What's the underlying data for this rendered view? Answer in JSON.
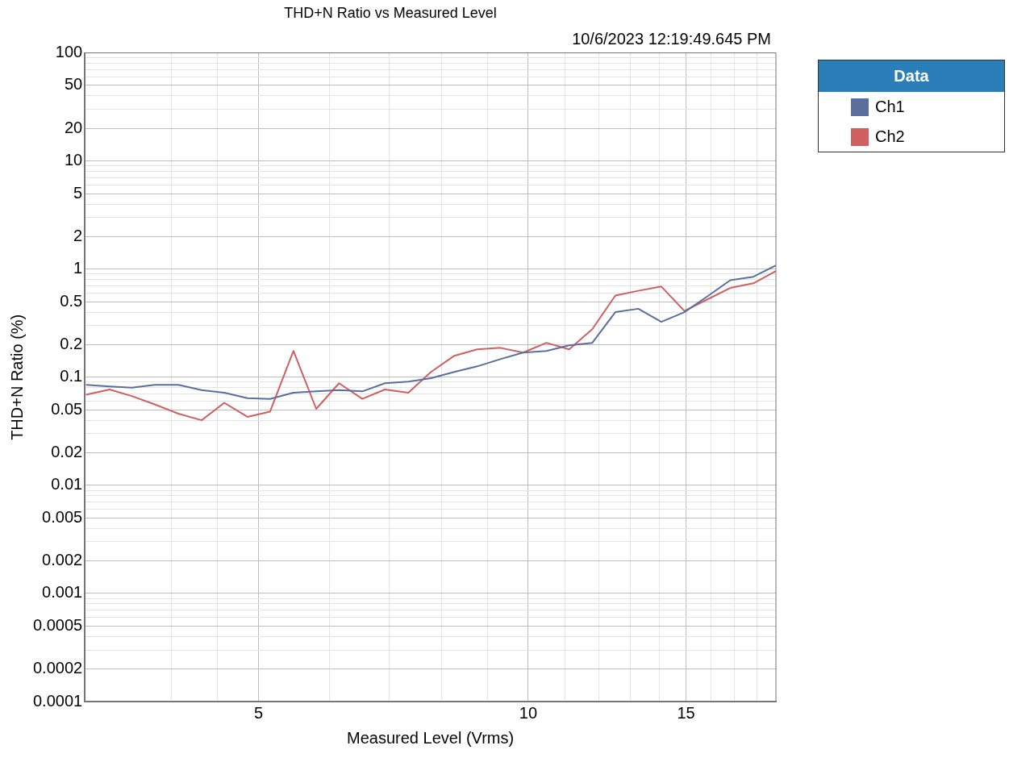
{
  "chart_data": {
    "type": "line",
    "title": "THD+N Ratio vs Measured Level",
    "xlabel": "Measured Level (Vrms)",
    "ylabel": "THD+N Ratio (%)",
    "legend_title": "Data",
    "annotations": [
      "10/6/2023 12:19:49.645 PM"
    ],
    "x": [
      3.21,
      3.41,
      3.61,
      3.83,
      4.07,
      4.32,
      4.58,
      4.86,
      5.15,
      5.47,
      5.8,
      6.15,
      6.53,
      6.92,
      7.35,
      7.79,
      8.27,
      8.77,
      9.31,
      9.87,
      10.48,
      11.11,
      11.79,
      12.51,
      13.27,
      14.08,
      14.94,
      15.85,
      16.81,
      17.84,
      18.9
    ],
    "series": [
      {
        "name": "Ch1",
        "color": "#5a6f9c",
        "values": [
          0.085,
          0.082,
          0.08,
          0.085,
          0.085,
          0.076,
          0.072,
          0.064,
          0.063,
          0.072,
          0.074,
          0.076,
          0.074,
          0.088,
          0.091,
          0.098,
          0.112,
          0.126,
          0.147,
          0.169,
          0.175,
          0.197,
          0.208,
          0.4,
          0.43,
          0.325,
          0.4,
          0.56,
          0.79,
          0.85,
          1.08
        ]
      },
      {
        "name": "Ch2",
        "color": "#d0605f",
        "values": [
          0.069,
          0.077,
          0.067,
          0.056,
          0.046,
          0.04,
          0.058,
          0.043,
          0.048,
          0.175,
          0.051,
          0.088,
          0.063,
          0.077,
          0.072,
          0.112,
          0.158,
          0.181,
          0.187,
          0.169,
          0.208,
          0.181,
          0.278,
          0.57,
          0.63,
          0.69,
          0.41,
          0.525,
          0.67,
          0.74,
          0.96
        ]
      }
    ],
    "log": "xy",
    "xlim": [
      3.2,
      18.9
    ],
    "ylim": [
      0.0001,
      100
    ],
    "xticks": [
      {
        "value": 4,
        "label": null
      },
      {
        "value": 4.5,
        "label": null
      },
      5,
      {
        "value": 6,
        "label": null
      },
      {
        "value": 7,
        "label": null
      },
      {
        "value": 8,
        "label": null
      },
      {
        "value": 9,
        "label": null
      },
      10,
      {
        "value": 11,
        "label": null
      },
      {
        "value": 12,
        "label": null
      },
      {
        "value": 13,
        "label": null
      },
      {
        "value": 14,
        "label": null
      },
      15,
      {
        "value": 16,
        "label": null
      },
      {
        "value": 17,
        "label": null
      },
      {
        "value": 18,
        "label": null
      }
    ],
    "yticks": [
      0.0001,
      0.0002,
      {
        "value": 0.0003,
        "label": null
      },
      {
        "value": 0.0004,
        "label": null
      },
      0.0005,
      {
        "value": 0.0006,
        "label": null
      },
      {
        "value": 0.0007,
        "label": null
      },
      {
        "value": 0.0008,
        "label": null
      },
      {
        "value": 0.0009,
        "label": null
      },
      0.001,
      0.002,
      {
        "value": 0.003,
        "label": null
      },
      {
        "value": 0.004,
        "label": null
      },
      0.005,
      {
        "value": 0.006,
        "label": null
      },
      {
        "value": 0.007,
        "label": null
      },
      {
        "value": 0.008,
        "label": null
      },
      {
        "value": 0.009,
        "label": null
      },
      0.01,
      0.02,
      {
        "value": 0.03,
        "label": null
      },
      {
        "value": 0.04,
        "label": null
      },
      0.05,
      {
        "value": 0.06,
        "label": null
      },
      {
        "value": 0.07,
        "label": null
      },
      {
        "value": 0.08,
        "label": null
      },
      {
        "value": 0.09,
        "label": null
      },
      0.1,
      0.2,
      {
        "value": 0.3,
        "label": null
      },
      {
        "value": 0.4,
        "label": null
      },
      0.5,
      {
        "value": 0.6,
        "label": null
      },
      {
        "value": 0.7,
        "label": null
      },
      {
        "value": 0.8,
        "label": null
      },
      {
        "value": 0.9,
        "label": null
      },
      1,
      2,
      {
        "value": 3,
        "label": null
      },
      {
        "value": 4,
        "label": null
      },
      5,
      {
        "value": 6,
        "label": null
      },
      {
        "value": 7,
        "label": null
      },
      {
        "value": 8,
        "label": null
      },
      {
        "value": 9,
        "label": null
      },
      10,
      20,
      {
        "value": 30,
        "label": null
      },
      {
        "value": 40,
        "label": null
      },
      50,
      {
        "value": 60,
        "label": null
      },
      {
        "value": 70,
        "label": null
      },
      {
        "value": 80,
        "label": null
      },
      {
        "value": 90,
        "label": null
      },
      100
    ],
    "grid": true,
    "legend": "top right",
    "marker": "none",
    "line_style": "solid"
  }
}
